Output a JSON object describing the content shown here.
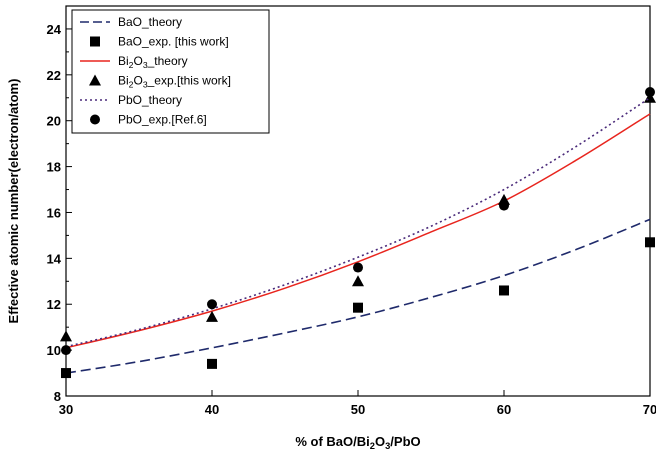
{
  "chart_data": {
    "type": "scatter",
    "title": "",
    "xlabel": "% of BaO/Bi2O3/PbO",
    "ylabel": "Effective atomic number(electron/atom)",
    "xlim": [
      30,
      70
    ],
    "ylim": [
      8,
      25
    ],
    "x_ticks": [
      30,
      40,
      50,
      60,
      70
    ],
    "y_ticks": [
      8,
      10,
      12,
      14,
      16,
      18,
      20,
      22,
      24
    ],
    "grid": false,
    "legend_position": "top-left",
    "series": [
      {
        "name": "BaO_theory",
        "kind": "line",
        "style": "dashed",
        "color": "#1f2a6b",
        "x": [
          30,
          35,
          40,
          45,
          50,
          55,
          60,
          65,
          70
        ],
        "y": [
          9.0,
          9.5,
          10.1,
          10.75,
          11.45,
          12.3,
          13.25,
          14.4,
          15.7
        ]
      },
      {
        "name": "BaO_exp. [this work]",
        "kind": "points",
        "marker": "square",
        "color": "#000000",
        "x": [
          30,
          40,
          50,
          60,
          70
        ],
        "y": [
          9.0,
          9.4,
          11.85,
          12.6,
          14.7
        ]
      },
      {
        "name": "Bi2O3_theory",
        "kind": "line",
        "style": "solid",
        "color": "#e8251e",
        "x": [
          30,
          35,
          40,
          45,
          50,
          55,
          60,
          65,
          70
        ],
        "y": [
          10.1,
          10.85,
          11.7,
          12.7,
          13.85,
          15.15,
          16.5,
          18.3,
          20.3
        ]
      },
      {
        "name": "Bi2O3_exp.[this work]",
        "kind": "points",
        "marker": "triangle",
        "color": "#000000",
        "x": [
          30,
          40,
          50,
          60,
          70
        ],
        "y": [
          10.6,
          11.45,
          13.0,
          16.55,
          21.0
        ]
      },
      {
        "name": "PbO_theory",
        "kind": "line",
        "style": "dotted",
        "color": "#4a2a7a",
        "x": [
          30,
          35,
          40,
          45,
          50,
          55,
          60,
          65,
          70
        ],
        "y": [
          10.15,
          10.9,
          11.8,
          12.85,
          14.05,
          15.4,
          17.0,
          18.9,
          21.0
        ]
      },
      {
        "name": "PbO_exp.[Ref.6]",
        "kind": "points",
        "marker": "circle",
        "color": "#000000",
        "x": [
          30,
          40,
          50,
          60,
          70
        ],
        "y": [
          10.0,
          12.0,
          13.6,
          16.3,
          21.25
        ]
      }
    ]
  }
}
